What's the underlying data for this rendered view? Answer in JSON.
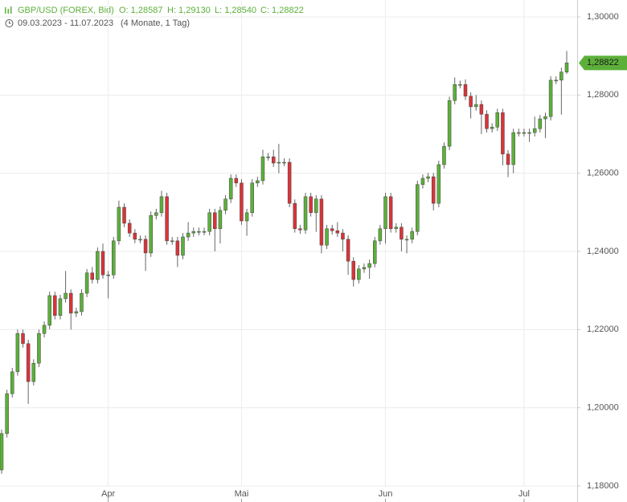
{
  "header": {
    "symbol": "GBP/USD (FOREX, Bid)",
    "open": "O: 1,28587",
    "high": "H: 1,29130",
    "low": "L: 1,28540",
    "close": "C: 1,28822",
    "range": "09.03.2023 - 11.07.2023",
    "period": "(4 Monate, 1 Tag)"
  },
  "chart_data": {
    "type": "candlestick",
    "up_color": "#5cb03a",
    "down_color": "#d9343a",
    "grid": true,
    "ylim": [
      1.18,
      1.3
    ],
    "yticks": [
      {
        "value": 1.18,
        "label": "1,18000"
      },
      {
        "value": 1.2,
        "label": "1,20000"
      },
      {
        "value": 1.22,
        "label": "1,22000"
      },
      {
        "value": 1.24,
        "label": "1,24000"
      },
      {
        "value": 1.26,
        "label": "1,26000"
      },
      {
        "value": 1.28,
        "label": "1,28000"
      },
      {
        "value": 1.3,
        "label": "1,30000"
      }
    ],
    "last_price": {
      "value": 1.28822,
      "label": "1,28822"
    },
    "categories": [
      null,
      null,
      null,
      null,
      null,
      null,
      null,
      null,
      null,
      null,
      null,
      null,
      null,
      null,
      null,
      null,
      null,
      null,
      null,
      null,
      "Apr",
      null,
      null,
      null,
      null,
      null,
      null,
      null,
      null,
      null,
      null,
      null,
      null,
      null,
      null,
      null,
      null,
      null,
      null,
      null,
      null,
      null,
      null,
      null,
      null,
      "Mai",
      null,
      null,
      null,
      null,
      null,
      null,
      null,
      null,
      null,
      null,
      null,
      null,
      null,
      null,
      null,
      null,
      null,
      null,
      null,
      null,
      null,
      null,
      null,
      null,
      null,
      null,
      "Jun",
      null,
      null,
      null,
      null,
      null,
      null,
      null,
      null,
      null,
      null,
      null,
      null,
      null,
      null,
      null,
      null,
      null,
      null,
      null,
      null,
      null,
      null,
      null,
      null,
      null,
      "Jul",
      null,
      null,
      null,
      null,
      null,
      null,
      null,
      null
    ],
    "open": [
      1.1841,
      1.1934,
      1.2036,
      1.2092,
      1.219,
      1.2164,
      1.2067,
      1.2114,
      1.219,
      1.2211,
      1.2287,
      1.2236,
      1.2279,
      1.2293,
      1.2242,
      1.2246,
      1.2293,
      1.2345,
      1.2328,
      1.24,
      1.234,
      1.234,
      1.2427,
      1.2513,
      1.2472,
      1.2447,
      1.2431,
      1.2431,
      1.2396,
      1.2492,
      1.2499,
      1.254,
      1.2427,
      1.2427,
      1.239,
      1.2437,
      1.2447,
      1.2451,
      1.2451,
      1.2451,
      1.2499,
      1.2458,
      1.2505,
      1.2534,
      1.2587,
      1.2575,
      1.2478,
      1.2499,
      1.2575,
      1.2581,
      1.2642,
      1.2642,
      1.2626,
      1.2628,
      1.2628,
      1.2523,
      1.2458,
      1.2455,
      1.254,
      1.2499,
      1.2534,
      1.2416,
      1.2458,
      1.2453,
      1.2447,
      1.2431,
      1.2375,
      1.2328,
      1.2355,
      1.2359,
      1.2369,
      1.2427,
      1.2458,
      1.254,
      1.2458,
      1.2462,
      1.2431,
      1.2431,
      1.2451,
      1.2571,
      1.2587,
      1.2591,
      1.2523,
      1.2622,
      1.2669,
      1.2786,
      1.2827,
      1.2827,
      1.2797,
      1.277,
      1.2776,
      1.2751,
      1.2714,
      1.2718,
      1.2755,
      1.2649,
      1.2622,
      1.2704,
      1.2704,
      1.2704,
      1.2704,
      1.2714,
      1.2739,
      1.2745,
      1.2838,
      1.2838,
      1.28587
    ],
    "high": [
      1.1944,
      1.2046,
      1.2102,
      1.22,
      1.22,
      1.2174,
      1.2124,
      1.22,
      1.2221,
      1.2297,
      1.2297,
      1.2289,
      1.235,
      1.2303,
      1.2256,
      1.2303,
      1.2355,
      1.236,
      1.241,
      1.242,
      1.235,
      1.2437,
      1.253,
      1.2523,
      1.2482,
      1.2457,
      1.2441,
      1.2441,
      1.2502,
      1.2509,
      1.2555,
      1.255,
      1.2437,
      1.2437,
      1.2447,
      1.2475,
      1.2461,
      1.2461,
      1.2461,
      1.2509,
      1.2509,
      1.2515,
      1.2544,
      1.2597,
      1.2597,
      1.2585,
      1.2509,
      1.2585,
      1.2591,
      1.266,
      1.2652,
      1.266,
      1.2675,
      1.2638,
      1.2638,
      1.2533,
      1.2468,
      1.255,
      1.255,
      1.2544,
      1.2544,
      1.2468,
      1.2468,
      1.2475,
      1.2457,
      1.2441,
      1.2385,
      1.2365,
      1.2369,
      1.2379,
      1.2437,
      1.2468,
      1.255,
      1.255,
      1.2472,
      1.2472,
      1.2441,
      1.2461,
      1.2581,
      1.2597,
      1.2601,
      1.2601,
      1.2632,
      1.2679,
      1.2796,
      1.2845,
      1.2837,
      1.284,
      1.2807,
      1.28,
      1.2786,
      1.2761,
      1.2728,
      1.2765,
      1.2765,
      1.2659,
      1.2714,
      1.2714,
      1.2714,
      1.2714,
      1.2745,
      1.2749,
      1.2755,
      1.2848,
      1.2848,
      1.287,
      1.2913
    ],
    "low": [
      1.1831,
      1.1924,
      1.2026,
      1.2082,
      1.2154,
      1.201,
      1.2057,
      1.2104,
      1.218,
      1.2201,
      1.2226,
      1.2226,
      1.2269,
      1.22,
      1.2232,
      1.2236,
      1.2283,
      1.2318,
      1.2318,
      1.233,
      1.228,
      1.233,
      1.2417,
      1.2462,
      1.2437,
      1.2421,
      1.2421,
      1.235,
      1.2386,
      1.2482,
      1.2489,
      1.2417,
      1.2417,
      1.236,
      1.238,
      1.2427,
      1.2437,
      1.2441,
      1.2441,
      1.2441,
      1.24,
      1.242,
      1.2495,
      1.2524,
      1.2565,
      1.2468,
      1.244,
      1.2489,
      1.2565,
      1.2571,
      1.2632,
      1.2616,
      1.26,
      1.2618,
      1.2513,
      1.2448,
      1.2445,
      1.2445,
      1.2489,
      1.245,
      1.2395,
      1.2406,
      1.2443,
      1.2437,
      1.24,
      1.234,
      1.231,
      1.2318,
      1.2345,
      1.233,
      1.2359,
      1.2417,
      1.242,
      1.2448,
      1.2448,
      1.24,
      1.2395,
      1.2421,
      1.2441,
      1.2561,
      1.2577,
      1.2505,
      1.2513,
      1.2612,
      1.2659,
      1.2776,
      1.2817,
      1.2787,
      1.274,
      1.276,
      1.27,
      1.2704,
      1.2704,
      1.2708,
      1.262,
      1.259,
      1.26,
      1.2694,
      1.2694,
      1.268,
      1.2694,
      1.2704,
      1.269,
      1.2735,
      1.2828,
      1.275,
      1.2854
    ],
    "close": [
      1.1934,
      1.2036,
      1.2092,
      1.219,
      1.2164,
      1.2067,
      1.2114,
      1.219,
      1.2211,
      1.2287,
      1.2236,
      1.2279,
      1.2293,
      1.2242,
      1.2246,
      1.2293,
      1.2345,
      1.2328,
      1.24,
      1.234,
      1.234,
      1.2427,
      1.2513,
      1.2472,
      1.2447,
      1.2431,
      1.2431,
      1.2396,
      1.2492,
      1.2499,
      1.254,
      1.2427,
      1.2427,
      1.239,
      1.2437,
      1.2447,
      1.2451,
      1.2451,
      1.2451,
      1.2499,
      1.2458,
      1.2505,
      1.2534,
      1.2587,
      1.2575,
      1.2478,
      1.2499,
      1.2575,
      1.2581,
      1.2642,
      1.2642,
      1.2626,
      1.2628,
      1.2628,
      1.2523,
      1.2458,
      1.2455,
      1.254,
      1.2499,
      1.2534,
      1.2416,
      1.2458,
      1.2453,
      1.2447,
      1.2431,
      1.2375,
      1.2328,
      1.2355,
      1.2359,
      1.2369,
      1.2427,
      1.2458,
      1.254,
      1.2458,
      1.2462,
      1.2431,
      1.2431,
      1.2451,
      1.2571,
      1.2587,
      1.2591,
      1.2523,
      1.2622,
      1.2669,
      1.2786,
      1.2827,
      1.2827,
      1.2797,
      1.277,
      1.2776,
      1.2751,
      1.2714,
      1.2718,
      1.2755,
      1.2649,
      1.2622,
      1.2704,
      1.2704,
      1.2704,
      1.2704,
      1.2714,
      1.2739,
      1.2745,
      1.2838,
      1.2838,
      1.28587,
      1.28822
    ]
  }
}
